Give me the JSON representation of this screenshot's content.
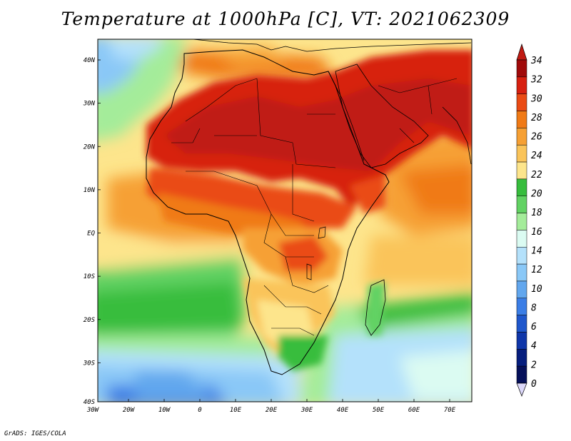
{
  "title": "Temperature at 1000hPa [C], VT: 2021062309",
  "footer": "GrADS: IGES/COLA",
  "map": {
    "lon_range": [
      -30,
      75
    ],
    "lat_range": [
      -40,
      45
    ],
    "x_ticks": [
      "30W",
      "20W",
      "10W",
      "0",
      "10E",
      "20E",
      "30E",
      "40E",
      "50E",
      "60E",
      "70E"
    ],
    "y_ticks": [
      "40N",
      "30N",
      "20N",
      "10N",
      "EQ",
      "10S",
      "20S",
      "30S",
      "40S"
    ]
  },
  "colorbar": {
    "labels": [
      "34",
      "32",
      "30",
      "28",
      "26",
      "24",
      "22",
      "20",
      "18",
      "16",
      "14",
      "12",
      "10",
      "8",
      "6",
      "4",
      "2",
      "0"
    ],
    "colors": [
      "#a00a0a",
      "#d72010",
      "#ea4b14",
      "#f07a16",
      "#f6a034",
      "#fac45a",
      "#fde58c",
      "#37bd3d",
      "#62d263",
      "#a4ec9a",
      "#dbfbf2",
      "#b4e1fb",
      "#8ac8f7",
      "#62a7ee",
      "#3b7ee6",
      "#1f57cc",
      "#0f36a9",
      "#061e7e",
      "#05105a"
    ],
    "top_color": "#c01a12",
    "bottom_color": "#dcd8fa"
  }
}
